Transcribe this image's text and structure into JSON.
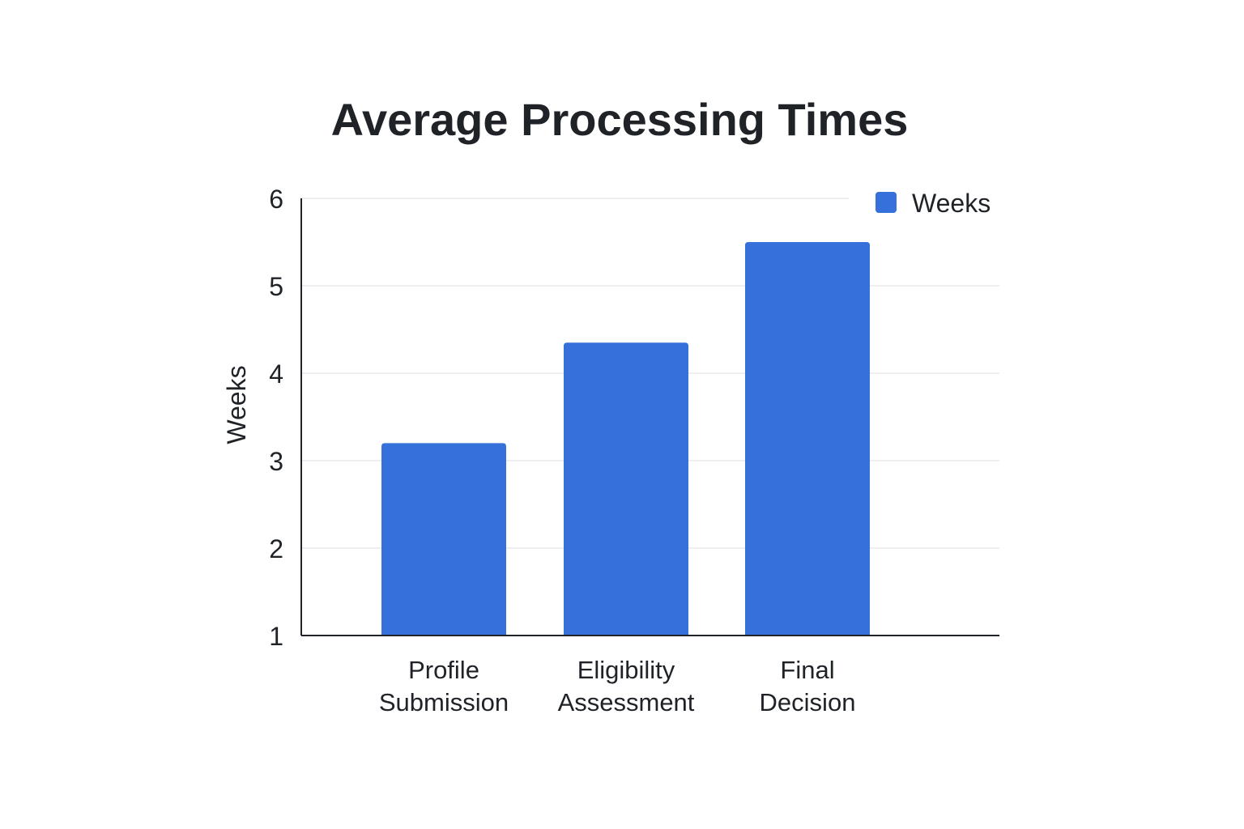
{
  "chart_data": {
    "type": "bar",
    "title": "Average Processing Times",
    "ylabel": "Weeks",
    "xlabel": "",
    "categories": [
      [
        "Profile",
        "Submission"
      ],
      [
        "Eligibility",
        "Assessment"
      ],
      [
        "Final",
        "Decision"
      ]
    ],
    "series": [
      {
        "name": "Weeks",
        "values": [
          3.2,
          4.35,
          5.5
        ],
        "color": "#3570db"
      }
    ],
    "ylim": [
      1,
      6
    ],
    "yticks": [
      "1",
      "2",
      "3",
      "4",
      "5",
      "6"
    ],
    "grid": true,
    "legend_position": "top-right"
  }
}
